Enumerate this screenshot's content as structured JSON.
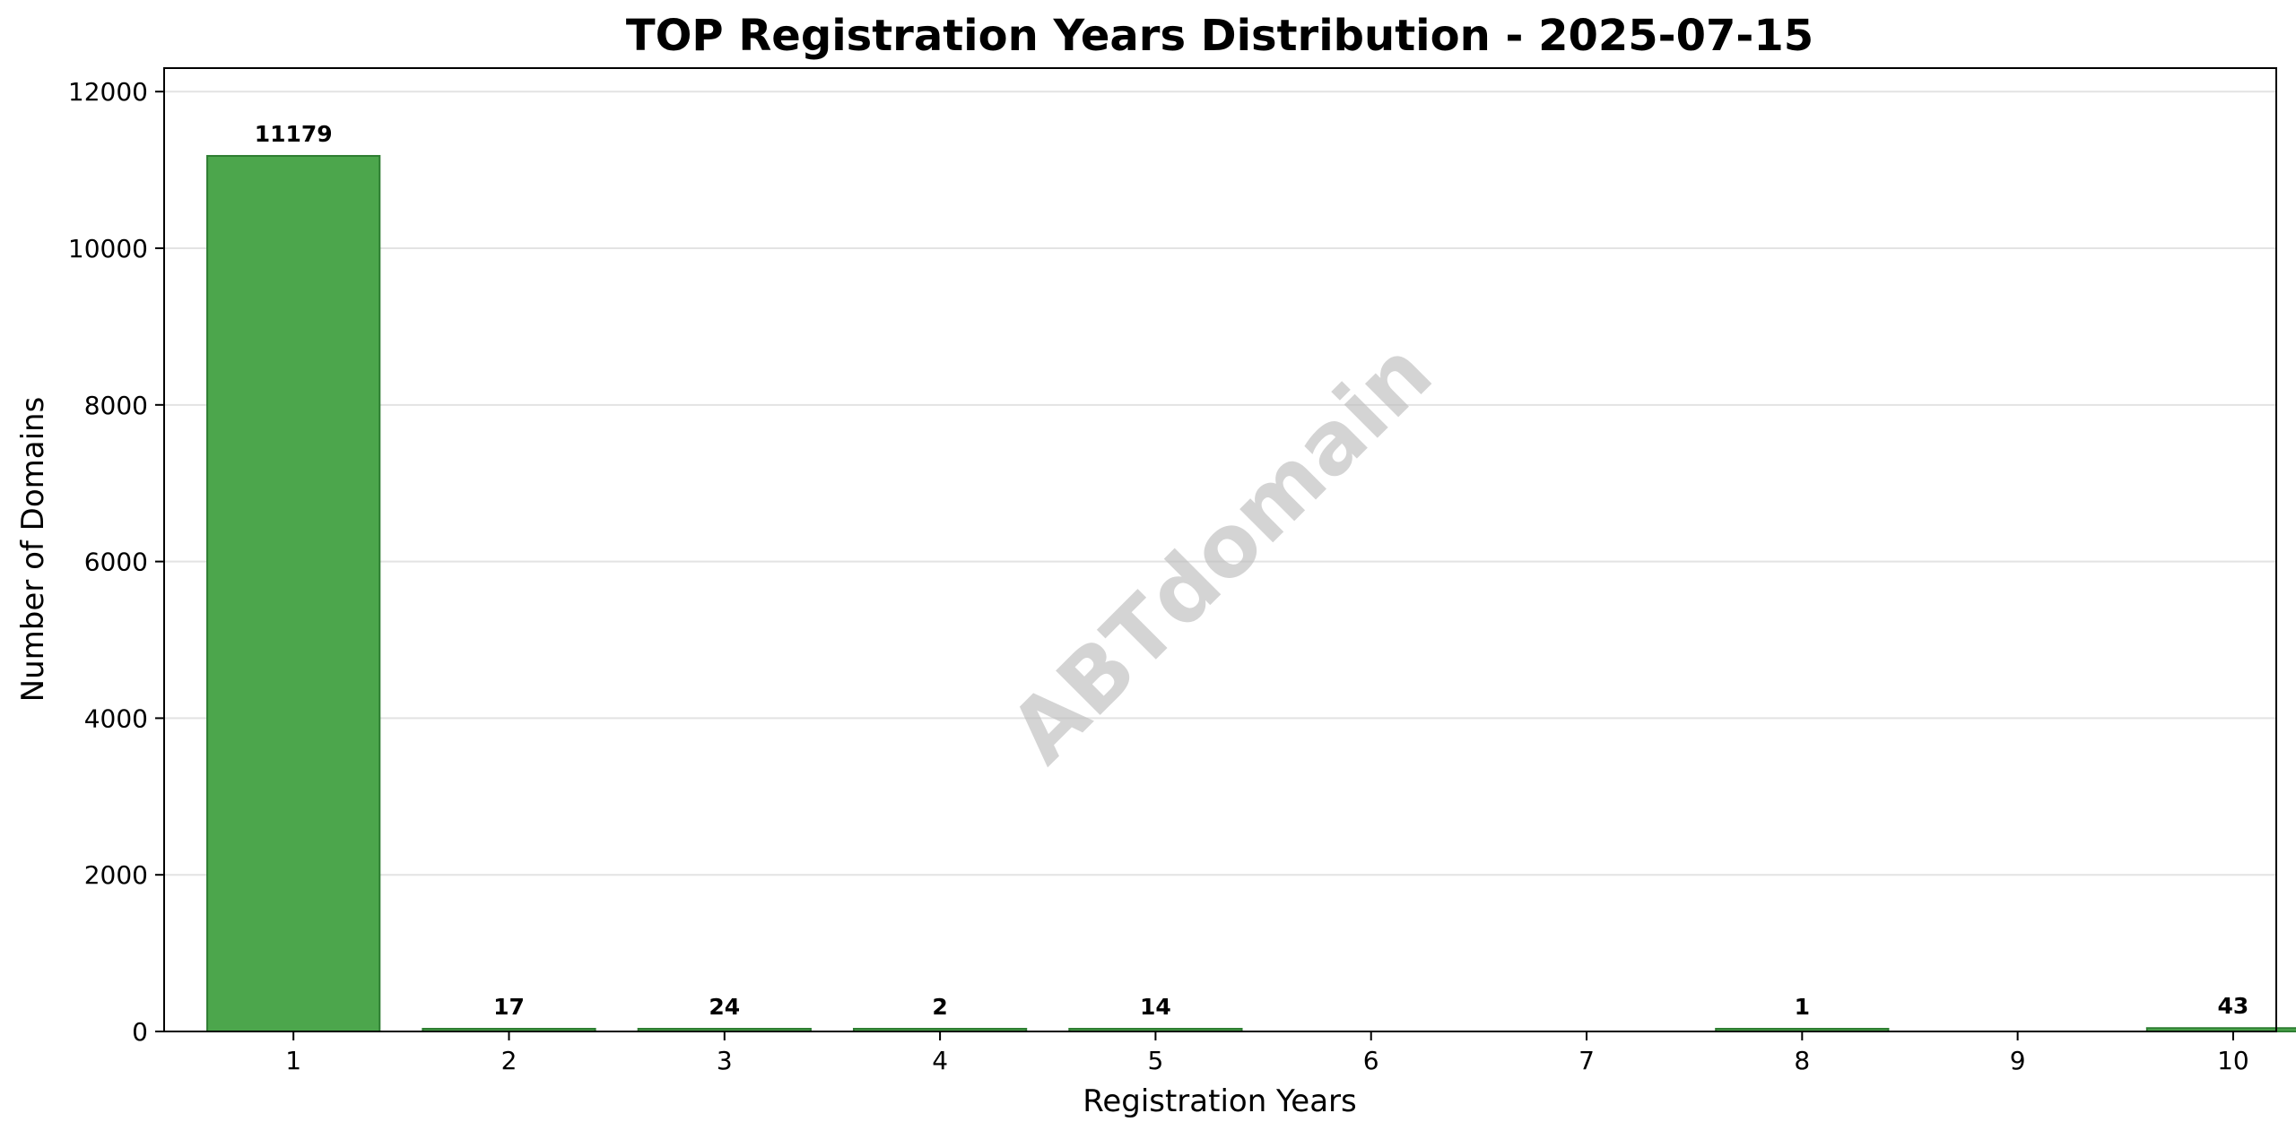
{
  "chart_data": {
    "type": "bar",
    "title": "TOP Registration Years Distribution - 2025-07-15",
    "xlabel": "Registration Years",
    "ylabel": "Number of Domains",
    "categories": [
      "1",
      "2",
      "3",
      "4",
      "5",
      "6",
      "7",
      "8",
      "9",
      "10"
    ],
    "values": [
      11179,
      17,
      24,
      2,
      14,
      0,
      0,
      1,
      0,
      43
    ],
    "data_labels": [
      "11179",
      "17",
      "24",
      "2",
      "14",
      "",
      "",
      "1",
      "",
      "43"
    ],
    "ylim": [
      0,
      12300
    ],
    "yticks": [
      0,
      2000,
      4000,
      6000,
      8000,
      10000,
      12000
    ],
    "ytick_labels": [
      "0",
      "2000",
      "4000",
      "6000",
      "8000",
      "10000",
      "12000"
    ],
    "grid": "horizontal",
    "bar_color": "#4ca64c",
    "bar_edge_color": "#2e7d32",
    "watermark": "ABTdomain"
  }
}
